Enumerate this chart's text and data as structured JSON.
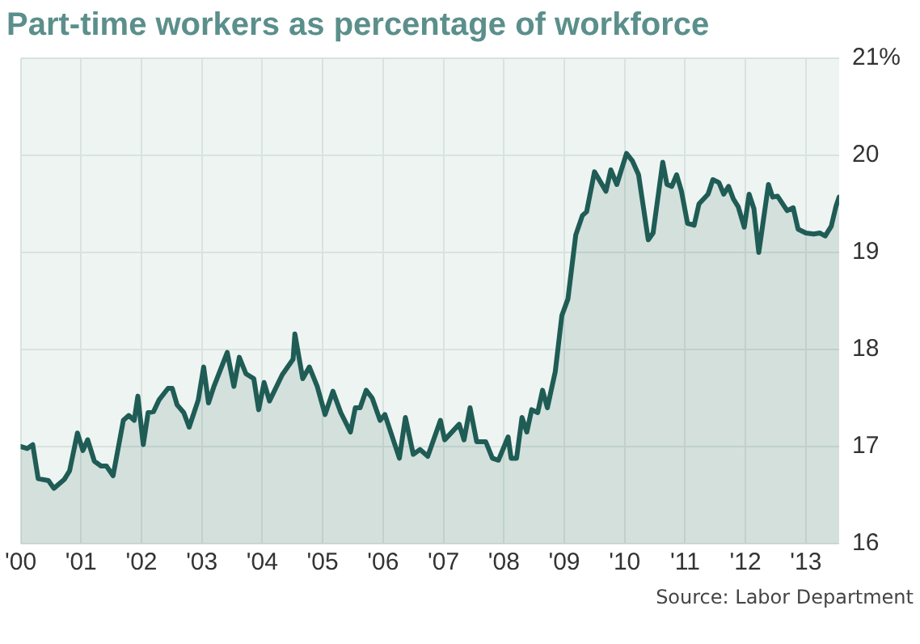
{
  "chart_data": {
    "type": "area",
    "title": "Part-time workers as percentage of workforce",
    "annotations": [
      "Source: Labor Department"
    ],
    "x": [
      2000.0,
      2000.11,
      2000.2,
      2000.29,
      2000.46,
      2000.55,
      2000.72,
      2000.81,
      2000.94,
      2001.03,
      2001.11,
      2001.22,
      2001.33,
      2001.42,
      2001.53,
      2001.7,
      2001.79,
      2001.88,
      2001.94,
      2002.03,
      2002.11,
      2002.2,
      2002.29,
      2002.44,
      2002.51,
      2002.59,
      2002.7,
      2002.79,
      2002.94,
      2003.03,
      2003.11,
      2003.2,
      2003.42,
      2003.53,
      2003.62,
      2003.73,
      2003.86,
      2003.94,
      2004.03,
      2004.12,
      2004.33,
      2004.51,
      2004.54,
      2004.67,
      2004.78,
      2004.91,
      2005.04,
      2005.17,
      2005.3,
      2005.46,
      2005.54,
      2005.62,
      2005.72,
      2005.82,
      2005.95,
      2006.03,
      2006.27,
      2006.37,
      2006.5,
      2006.61,
      2006.74,
      2006.95,
      2007.02,
      2007.26,
      2007.34,
      2007.44,
      2007.55,
      2007.7,
      2007.81,
      2007.91,
      2008.07,
      2008.12,
      2008.21,
      2008.3,
      2008.38,
      2008.46,
      2008.56,
      2008.64,
      2008.72,
      2008.85,
      2008.96,
      2009.06,
      2009.19,
      2009.3,
      2009.37,
      2009.5,
      2009.69,
      2009.77,
      2009.87,
      2010.03,
      2010.13,
      2010.23,
      2010.39,
      2010.47,
      2010.63,
      2010.7,
      2010.78,
      2010.86,
      2010.94,
      2011.04,
      2011.15,
      2011.23,
      2011.38,
      2011.46,
      2011.56,
      2011.64,
      2011.72,
      2011.8,
      2011.88,
      2011.98,
      2012.06,
      2012.14,
      2012.22,
      2012.38,
      2012.45,
      2012.53,
      2012.69,
      2012.79,
      2012.87,
      2013.0,
      2013.13,
      2013.23,
      2013.32,
      2013.42,
      2013.5,
      2013.55
    ],
    "series": [
      {
        "color": "#1f5c55",
        "values": [
          17.0,
          16.98,
          17.02,
          16.67,
          16.65,
          16.57,
          16.66,
          16.75,
          17.14,
          16.96,
          17.07,
          16.85,
          16.8,
          16.8,
          16.7,
          17.27,
          17.32,
          17.27,
          17.52,
          17.02,
          17.35,
          17.36,
          17.48,
          17.6,
          17.6,
          17.43,
          17.35,
          17.2,
          17.48,
          17.82,
          17.45,
          17.62,
          17.97,
          17.62,
          17.92,
          17.75,
          17.7,
          17.38,
          17.66,
          17.47,
          17.74,
          17.9,
          18.16,
          17.7,
          17.82,
          17.62,
          17.33,
          17.57,
          17.35,
          17.15,
          17.4,
          17.4,
          17.58,
          17.5,
          17.27,
          17.33,
          16.88,
          17.3,
          16.92,
          16.97,
          16.9,
          17.27,
          17.07,
          17.23,
          17.07,
          17.4,
          17.05,
          17.05,
          16.88,
          16.86,
          17.1,
          16.88,
          16.88,
          17.3,
          17.15,
          17.38,
          17.35,
          17.58,
          17.4,
          17.77,
          18.35,
          18.52,
          19.18,
          19.38,
          19.42,
          19.83,
          19.63,
          19.85,
          19.7,
          20.02,
          19.94,
          19.8,
          19.13,
          19.2,
          19.93,
          19.7,
          19.68,
          19.8,
          19.63,
          19.3,
          19.28,
          19.5,
          19.6,
          19.75,
          19.72,
          19.6,
          19.68,
          19.55,
          19.47,
          19.26,
          19.6,
          19.45,
          19.0,
          19.7,
          19.57,
          19.58,
          19.43,
          19.46,
          19.24,
          19.2,
          19.19,
          19.2,
          19.17,
          19.27,
          19.48,
          19.57
        ]
      }
    ],
    "xlim": [
      2000,
      2013.55
    ],
    "xticks": [
      {
        "value": 2000,
        "label": "'00"
      },
      {
        "value": 2001,
        "label": "'01"
      },
      {
        "value": 2002,
        "label": "'02"
      },
      {
        "value": 2003,
        "label": "'03"
      },
      {
        "value": 2004,
        "label": "'04"
      },
      {
        "value": 2005,
        "label": "'05"
      },
      {
        "value": 2006,
        "label": "'06"
      },
      {
        "value": 2007,
        "label": "'07"
      },
      {
        "value": 2008,
        "label": "'08"
      },
      {
        "value": 2009,
        "label": "'09"
      },
      {
        "value": 2010,
        "label": "'10"
      },
      {
        "value": 2011,
        "label": "'11"
      },
      {
        "value": 2012,
        "label": "'12"
      },
      {
        "value": 2013,
        "label": "'13"
      }
    ],
    "ylim": [
      16,
      21
    ],
    "yticks": [
      16,
      17,
      18,
      19,
      20,
      {
        "value": 21,
        "label": "21%"
      }
    ],
    "grid": true,
    "legend": false,
    "marker": "none",
    "line_style": "solid"
  }
}
